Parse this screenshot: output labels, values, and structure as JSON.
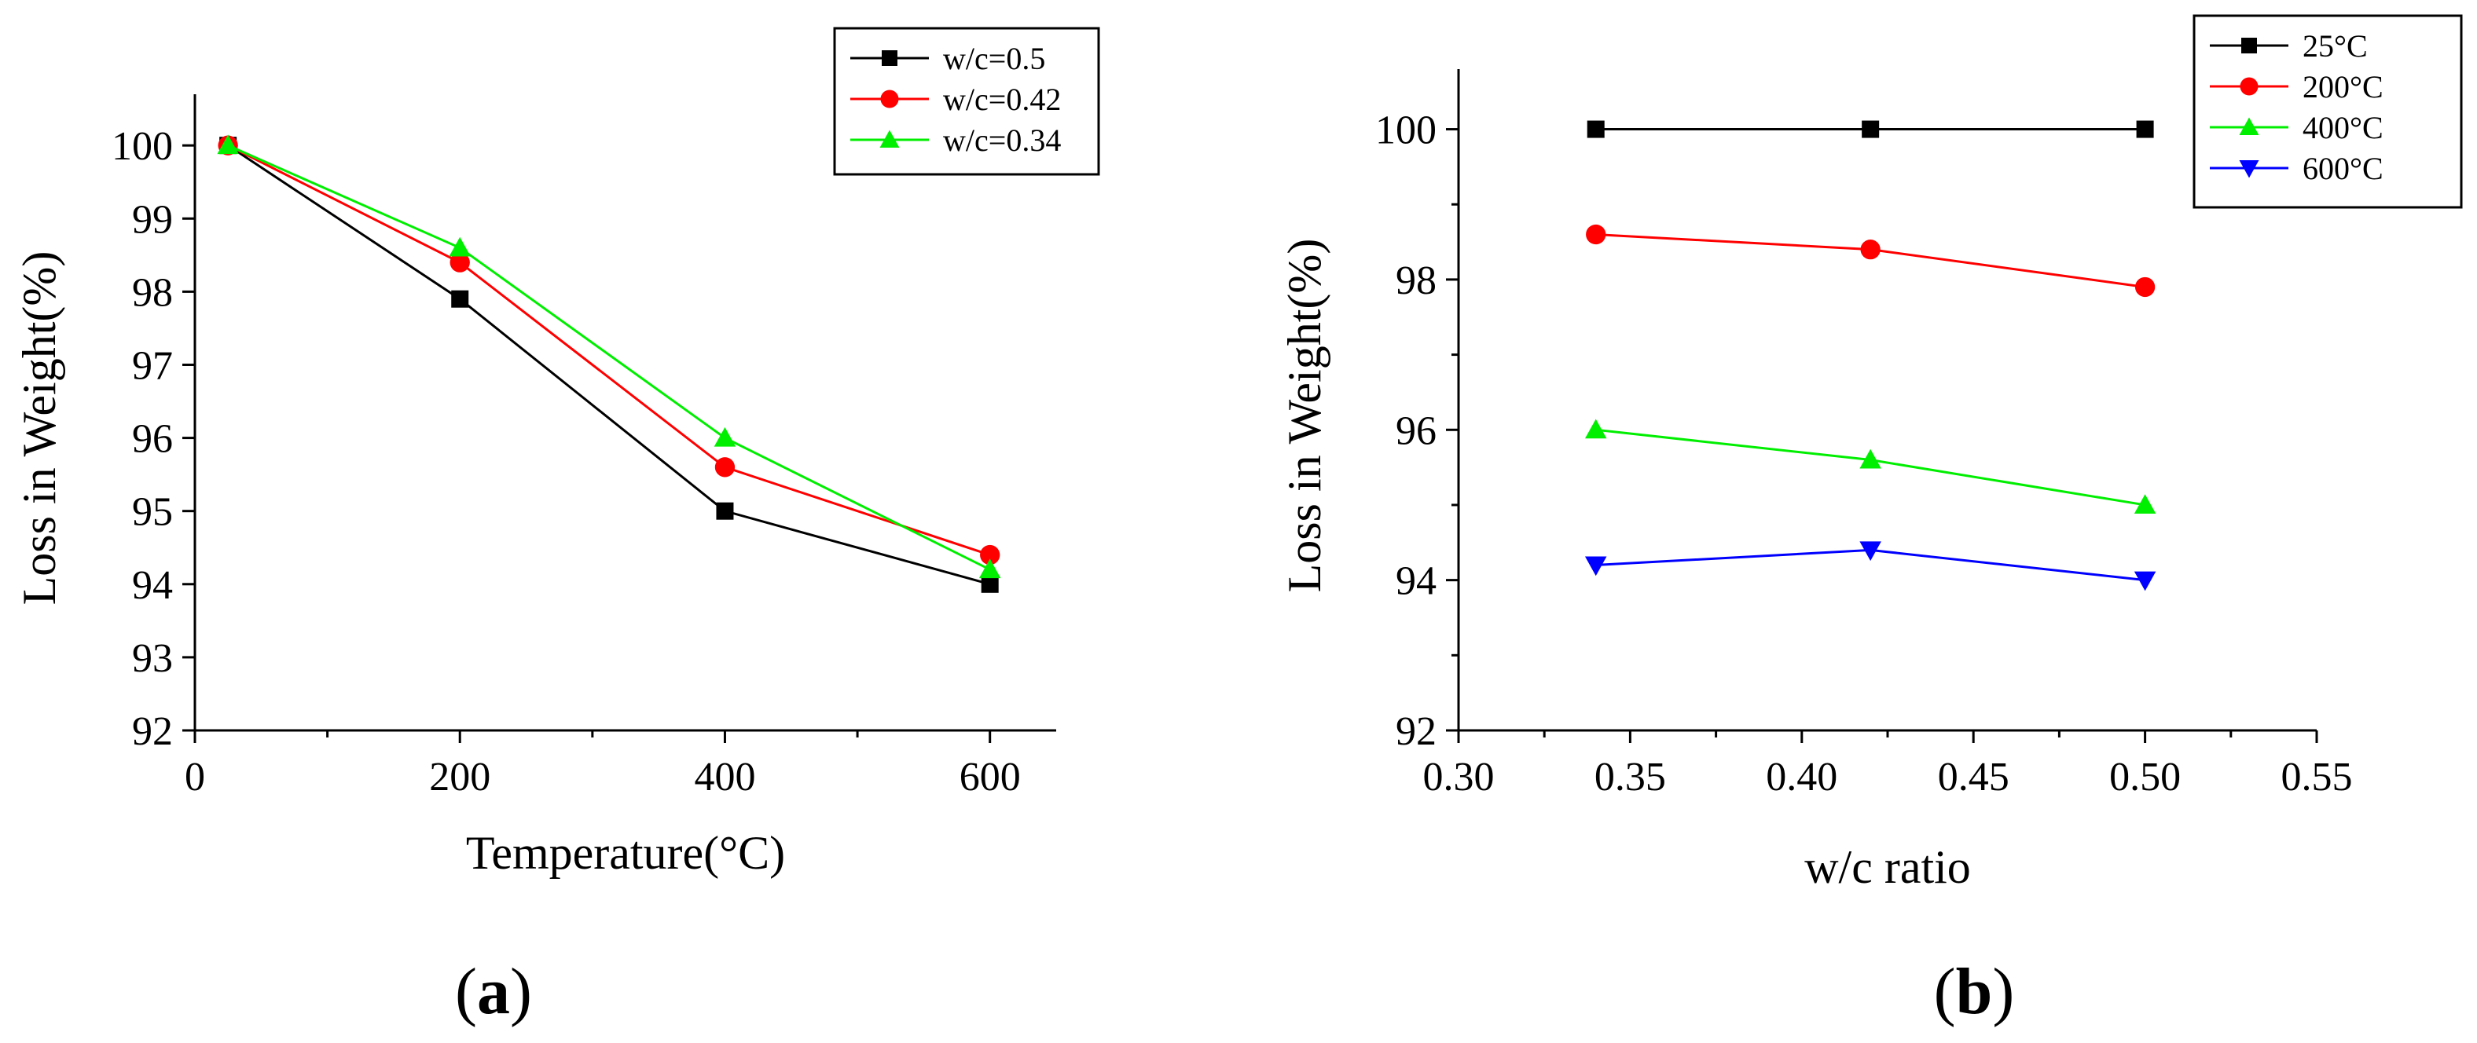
{
  "chart_data": [
    {
      "id": "a",
      "type": "line",
      "panel_label": "a",
      "xlabel": "Temperature(°C)",
      "ylabel": "Loss in Weight(%)",
      "xlim": [
        0,
        650
      ],
      "ylim": [
        92,
        100.7
      ],
      "xticks": [
        0,
        200,
        400,
        600
      ],
      "yticks": [
        92,
        93,
        94,
        95,
        96,
        97,
        98,
        99,
        100
      ],
      "x": [
        25,
        200,
        400,
        600
      ],
      "legend_position": "top-right",
      "series": [
        {
          "name": "w/c=0.5",
          "color": "#000000",
          "marker": "square",
          "values": [
            100,
            97.9,
            95.0,
            94.0
          ]
        },
        {
          "name": "w/c=0.42",
          "color": "#ff0000",
          "marker": "circle",
          "values": [
            100,
            98.4,
            95.6,
            94.4
          ]
        },
        {
          "name": "w/c=0.34",
          "color": "#00ee00",
          "marker": "triangle-up",
          "values": [
            100,
            98.6,
            96.0,
            94.2
          ]
        }
      ]
    },
    {
      "id": "b",
      "type": "line",
      "panel_label": "b",
      "xlabel": "w/c ratio",
      "ylabel": "Loss in Weight(%)",
      "xlim": [
        0.3,
        0.55
      ],
      "ylim": [
        92,
        100.8
      ],
      "xticks": [
        "0.30",
        "0.35",
        "0.40",
        "0.45",
        "0.50",
        "0.55"
      ],
      "yticks": [
        92,
        94,
        96,
        98,
        100
      ],
      "x": [
        0.34,
        0.42,
        0.5
      ],
      "legend_position": "top-right",
      "series": [
        {
          "name": "25°C",
          "color": "#000000",
          "marker": "square",
          "values": [
            100,
            100,
            100
          ]
        },
        {
          "name": "200°C",
          "color": "#ff0000",
          "marker": "circle",
          "values": [
            98.6,
            98.4,
            97.9
          ]
        },
        {
          "name": "400°C",
          "color": "#00ee00",
          "marker": "triangle-up",
          "values": [
            96.0,
            95.6,
            95.0
          ]
        },
        {
          "name": "600°C",
          "color": "#0000ff",
          "marker": "triangle-down",
          "values": [
            94.2,
            94.4,
            94.0
          ]
        }
      ]
    }
  ]
}
